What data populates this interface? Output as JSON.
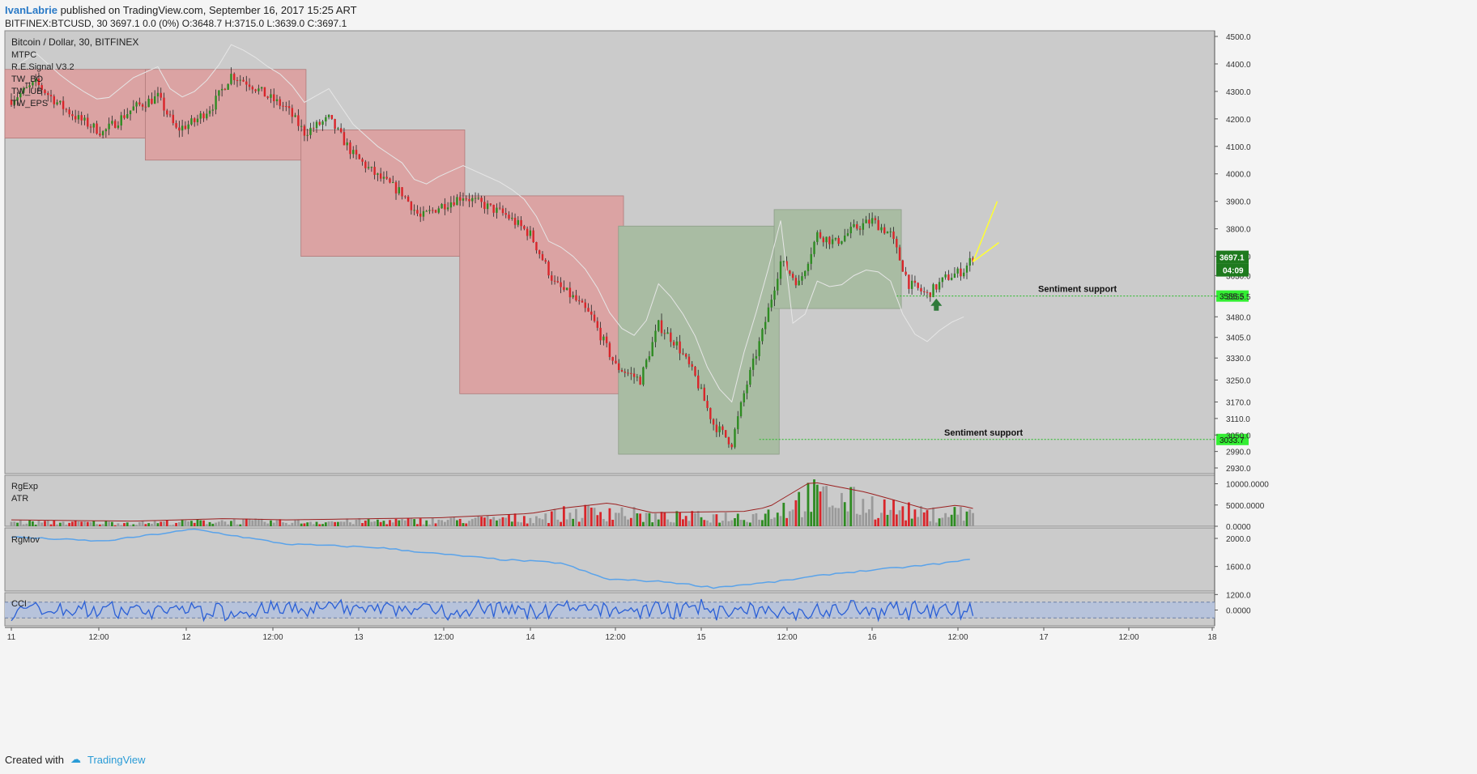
{
  "header": {
    "author": "IvanLabrie",
    "published": " published on TradingView.com, September 16, 2017 15:25 ART",
    "line2": "BITFINEX:BTCUSD, 30  3697.1 0.0 (0%)  O:3648.7 H:3715.0 L:3639.0 C:3697.1"
  },
  "footer": {
    "created_with": "Created with",
    "brand": "TradingView"
  },
  "legend": {
    "symbol": "Bitcoin / Dollar, 30, BITFINEX",
    "indicators": [
      "MTPC",
      "R.E.Signal V3.2",
      "TW_BO",
      "TW_UB",
      "TW_EPS"
    ]
  },
  "colors": {
    "bg": "#cbcbcb",
    "up": "#2e8b22",
    "down": "#d9252a",
    "zone_red": "#dba3a3",
    "zone_green": "#a9bca3",
    "cci_band": "#b7c3db",
    "line_blue": "#5aa3ea",
    "support": "#33ee33"
  },
  "chart_data": [
    {
      "type": "candlestick",
      "title": "Bitcoin / Dollar, 30, BITFINEX",
      "x_ticks": [
        "11",
        "12:00",
        "12",
        "12:00",
        "13",
        "12:00",
        "14",
        "12:00",
        "15",
        "12:00",
        "16",
        "12:00",
        "17",
        "12:00",
        "18"
      ],
      "ylim": [
        2930,
        4500
      ],
      "y_ticks": [
        2930,
        2990,
        3050,
        3110,
        3170,
        3250,
        3330,
        3405,
        3480,
        3555,
        3630,
        3700,
        3800,
        3900,
        4000,
        4100,
        4200,
        4300,
        4400,
        4500
      ],
      "y_tick_labels": [
        "2930.0",
        "2990.0",
        "3050.0",
        "3110.0",
        "3170.0",
        "3250.0",
        "3330.0",
        "3405.0",
        "3480.0",
        "3555.5",
        "3630.0",
        "3700.0",
        "3800.0",
        "3900.0",
        "4000.0",
        "4100.0",
        "4200.0",
        "4300.0",
        "4400.0",
        "4500.0"
      ],
      "last_price": "3697.1",
      "countdown": "04:09",
      "supports": [
        {
          "label": "Sentiment support",
          "value": "3555.5"
        },
        {
          "label": "Sentiment support",
          "value": "3033.7"
        }
      ],
      "anchors": [
        [
          0,
          4270
        ],
        [
          8,
          4330
        ],
        [
          16,
          4250
        ],
        [
          22,
          4200
        ],
        [
          30,
          4150
        ],
        [
          40,
          4240
        ],
        [
          48,
          4280
        ],
        [
          54,
          4160
        ],
        [
          60,
          4190
        ],
        [
          66,
          4250
        ],
        [
          72,
          4360
        ],
        [
          78,
          4330
        ],
        [
          84,
          4280
        ],
        [
          90,
          4240
        ],
        [
          96,
          4150
        ],
        [
          104,
          4200
        ],
        [
          112,
          4070
        ],
        [
          120,
          3990
        ],
        [
          128,
          3930
        ],
        [
          134,
          3840
        ],
        [
          140,
          3880
        ],
        [
          148,
          3920
        ],
        [
          156,
          3880
        ],
        [
          162,
          3850
        ],
        [
          170,
          3780
        ],
        [
          178,
          3600
        ],
        [
          184,
          3550
        ],
        [
          190,
          3480
        ],
        [
          198,
          3300
        ],
        [
          206,
          3250
        ],
        [
          212,
          3450
        ],
        [
          218,
          3380
        ],
        [
          224,
          3260
        ],
        [
          230,
          3090
        ],
        [
          236,
          3020
        ],
        [
          240,
          3200
        ],
        [
          246,
          3420
        ],
        [
          252,
          3680
        ],
        [
          258,
          3600
        ],
        [
          264,
          3780
        ],
        [
          270,
          3750
        ],
        [
          276,
          3800
        ],
        [
          282,
          3830
        ],
        [
          288,
          3780
        ],
        [
          294,
          3600
        ],
        [
          300,
          3560
        ],
        [
          306,
          3620
        ],
        [
          312,
          3650
        ],
        [
          315,
          3697
        ]
      ],
      "zones": [
        {
          "kind": "red",
          "from_bar": 0,
          "to_bar": 45,
          "top": 4380,
          "bottom": 4130
        },
        {
          "kind": "red",
          "from_bar": 46,
          "to_bar": 96,
          "top": 4380,
          "bottom": 4050
        },
        {
          "kind": "red",
          "from_bar": 97,
          "to_bar": 148,
          "top": 4160,
          "bottom": 3700
        },
        {
          "kind": "red",
          "from_bar": 149,
          "to_bar": 200,
          "top": 3920,
          "bottom": 3200
        },
        {
          "kind": "green",
          "from_bar": 201,
          "to_bar": 251,
          "top": 3810,
          "bottom": 2980
        },
        {
          "kind": "green",
          "from_bar": 252,
          "to_bar": 291,
          "top": 3870,
          "bottom": 3510
        }
      ]
    },
    {
      "type": "bar",
      "title": "RgExp / ATR",
      "series_names": [
        "RgExp",
        "ATR"
      ],
      "ylim": [
        0,
        12000
      ],
      "y_tick_labels": [
        "10000.0000",
        "5000.0000",
        "0.0000"
      ],
      "anchors": [
        [
          0,
          1500
        ],
        [
          40,
          1200
        ],
        [
          70,
          1800
        ],
        [
          90,
          1500
        ],
        [
          110,
          1700
        ],
        [
          140,
          2000
        ],
        [
          170,
          3000
        ],
        [
          180,
          4200
        ],
        [
          196,
          5500
        ],
        [
          210,
          3200
        ],
        [
          240,
          3500
        ],
        [
          248,
          4500
        ],
        [
          262,
          10500
        ],
        [
          280,
          8000
        ],
        [
          300,
          4000
        ],
        [
          310,
          5000
        ],
        [
          315,
          4200
        ]
      ]
    },
    {
      "type": "line",
      "title": "RgMov",
      "series_names": [
        "RgMov"
      ],
      "ylim": [
        1250,
        2150
      ],
      "y_tick_labels": [
        "2000.0",
        "1600.0",
        "1200.0"
      ],
      "anchors": [
        [
          0,
          2020
        ],
        [
          30,
          1960
        ],
        [
          60,
          2130
        ],
        [
          90,
          1920
        ],
        [
          120,
          1870
        ],
        [
          140,
          1780
        ],
        [
          160,
          1700
        ],
        [
          180,
          1650
        ],
        [
          195,
          1420
        ],
        [
          215,
          1380
        ],
        [
          230,
          1300
        ],
        [
          250,
          1380
        ],
        [
          270,
          1500
        ],
        [
          300,
          1620
        ],
        [
          315,
          1700
        ]
      ]
    },
    {
      "type": "line",
      "title": "CCI",
      "series_names": [
        "CCI"
      ],
      "ylim": [
        -200,
        220
      ],
      "y_tick_labels": [
        "0.0000"
      ],
      "band": [
        -100,
        100
      ]
    }
  ]
}
